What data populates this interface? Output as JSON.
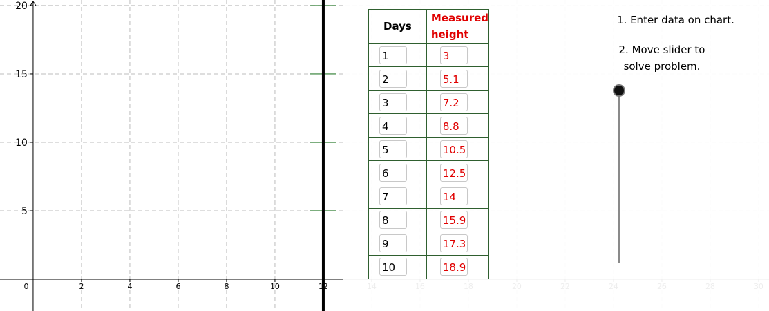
{
  "graph": {
    "xlim": [
      -1.37,
      30.43
    ],
    "ylim": [
      -2.32,
      20.4
    ],
    "xticks": [
      0,
      2,
      4,
      6,
      8,
      10,
      12,
      14,
      16,
      18,
      20,
      22,
      24,
      26,
      28,
      30
    ],
    "yticks": [
      5,
      10,
      15,
      20
    ],
    "grid": true,
    "vertical_line_x": 12
  },
  "table": {
    "headers": [
      "Days",
      "Measured height"
    ],
    "rows": [
      [
        1,
        3
      ],
      [
        2,
        5.1
      ],
      [
        3,
        7.2
      ],
      [
        4,
        8.8
      ],
      [
        5,
        10.5
      ],
      [
        6,
        12.5
      ],
      [
        7,
        14
      ],
      [
        8,
        15.9
      ],
      [
        9,
        17.3
      ],
      [
        10,
        18.9
      ]
    ]
  },
  "instructions": [
    "1. Enter data on chart.",
    "2. Move slider to solve problem."
  ]
}
